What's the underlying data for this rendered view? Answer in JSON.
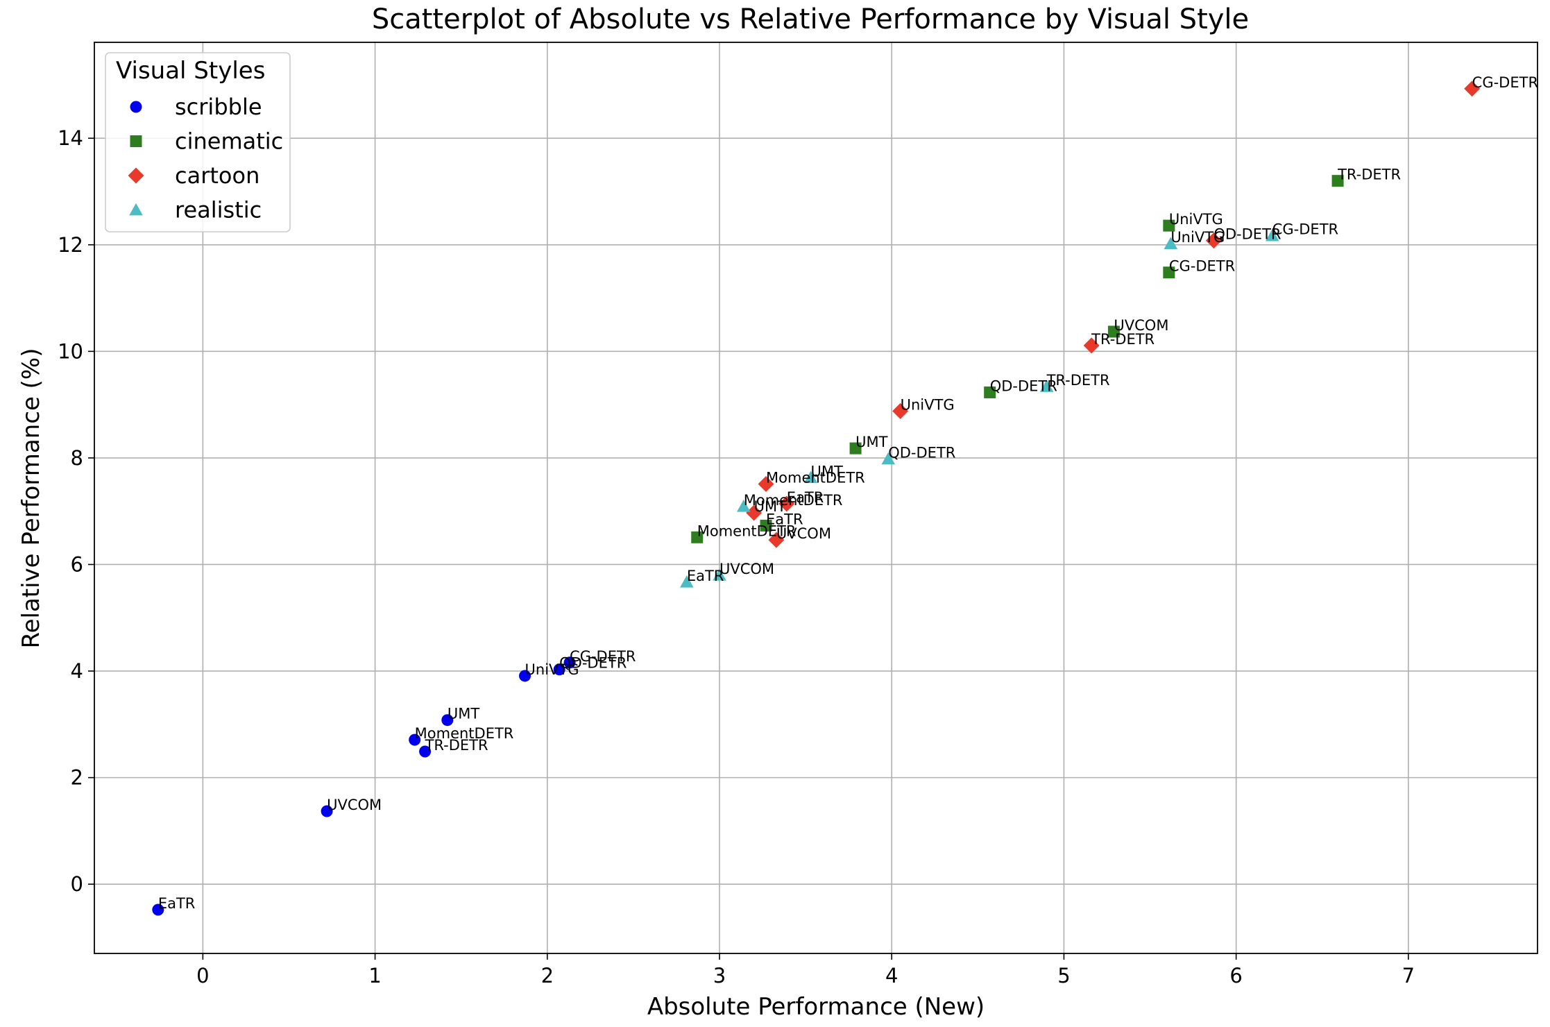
{
  "chart_data": {
    "type": "scatter",
    "title": "Scatterplot of Absolute vs Relative Performance by Visual Style",
    "xlabel": "Absolute Performance (New)",
    "ylabel": "Relative Performance (%)",
    "xlim": [
      -0.63,
      7.75
    ],
    "ylim": [
      -1.3,
      15.8
    ],
    "xticks": [
      0,
      1,
      2,
      3,
      4,
      5,
      6,
      7
    ],
    "yticks": [
      0,
      2,
      4,
      6,
      8,
      10,
      12,
      14
    ],
    "grid": true,
    "legend": {
      "title": "Visual Styles",
      "position": "top-left"
    },
    "series": [
      {
        "name": "scribble",
        "marker": "circle",
        "color": "#0000ee",
        "points": [
          {
            "x": -0.26,
            "y": -0.48,
            "label": "EaTR"
          },
          {
            "x": 0.72,
            "y": 1.37,
            "label": "UVCOM"
          },
          {
            "x": 1.23,
            "y": 2.71,
            "label": "MomentDETR"
          },
          {
            "x": 1.29,
            "y": 2.49,
            "label": "TR-DETR"
          },
          {
            "x": 1.42,
            "y": 3.08,
            "label": "UMT"
          },
          {
            "x": 1.87,
            "y": 3.91,
            "label": "UniVTG"
          },
          {
            "x": 2.07,
            "y": 4.03,
            "label": "QD-DETR"
          },
          {
            "x": 2.13,
            "y": 4.16,
            "label": "CG-DETR"
          }
        ]
      },
      {
        "name": "cinematic",
        "marker": "square",
        "color": "#2e7d1f",
        "points": [
          {
            "x": 2.87,
            "y": 6.51,
            "label": "MomentDETR"
          },
          {
            "x": 3.27,
            "y": 6.73,
            "label": "EaTR"
          },
          {
            "x": 3.79,
            "y": 8.18,
            "label": "UMT"
          },
          {
            "x": 4.57,
            "y": 9.23,
            "label": "QD-DETR"
          },
          {
            "x": 5.29,
            "y": 10.37,
            "label": "UVCOM"
          },
          {
            "x": 5.61,
            "y": 12.36,
            "label": "UniVTG"
          },
          {
            "x": 5.61,
            "y": 11.48,
            "label": "CG-DETR"
          },
          {
            "x": 6.59,
            "y": 13.2,
            "label": "TR-DETR"
          }
        ]
      },
      {
        "name": "cartoon",
        "marker": "diamond",
        "color": "#e8392b",
        "points": [
          {
            "x": 3.27,
            "y": 7.51,
            "label": "MomentDETR"
          },
          {
            "x": 3.2,
            "y": 6.97,
            "label": "UMT"
          },
          {
            "x": 3.39,
            "y": 7.14,
            "label": "EaTR"
          },
          {
            "x": 3.33,
            "y": 6.46,
            "label": "UVCOM"
          },
          {
            "x": 4.05,
            "y": 8.88,
            "label": "UniVTG"
          },
          {
            "x": 5.16,
            "y": 10.11,
            "label": "TR-DETR"
          },
          {
            "x": 5.87,
            "y": 12.08,
            "label": "QD-DETR"
          },
          {
            "x": 7.37,
            "y": 14.93,
            "label": "CG-DETR"
          }
        ]
      },
      {
        "name": "realistic",
        "marker": "triangle",
        "color": "#4cbcc4",
        "points": [
          {
            "x": 2.81,
            "y": 5.67,
            "label": "EaTR"
          },
          {
            "x": 3.0,
            "y": 5.8,
            "label": "UVCOM"
          },
          {
            "x": 3.14,
            "y": 7.09,
            "label": "MomentDETR"
          },
          {
            "x": 3.53,
            "y": 7.63,
            "label": "UMT"
          },
          {
            "x": 3.98,
            "y": 7.98,
            "label": "QD-DETR"
          },
          {
            "x": 4.9,
            "y": 9.34,
            "label": "TR-DETR"
          },
          {
            "x": 5.62,
            "y": 12.02,
            "label": "UniVTG"
          },
          {
            "x": 6.21,
            "y": 12.17,
            "label": "CG-DETR"
          }
        ]
      }
    ]
  }
}
